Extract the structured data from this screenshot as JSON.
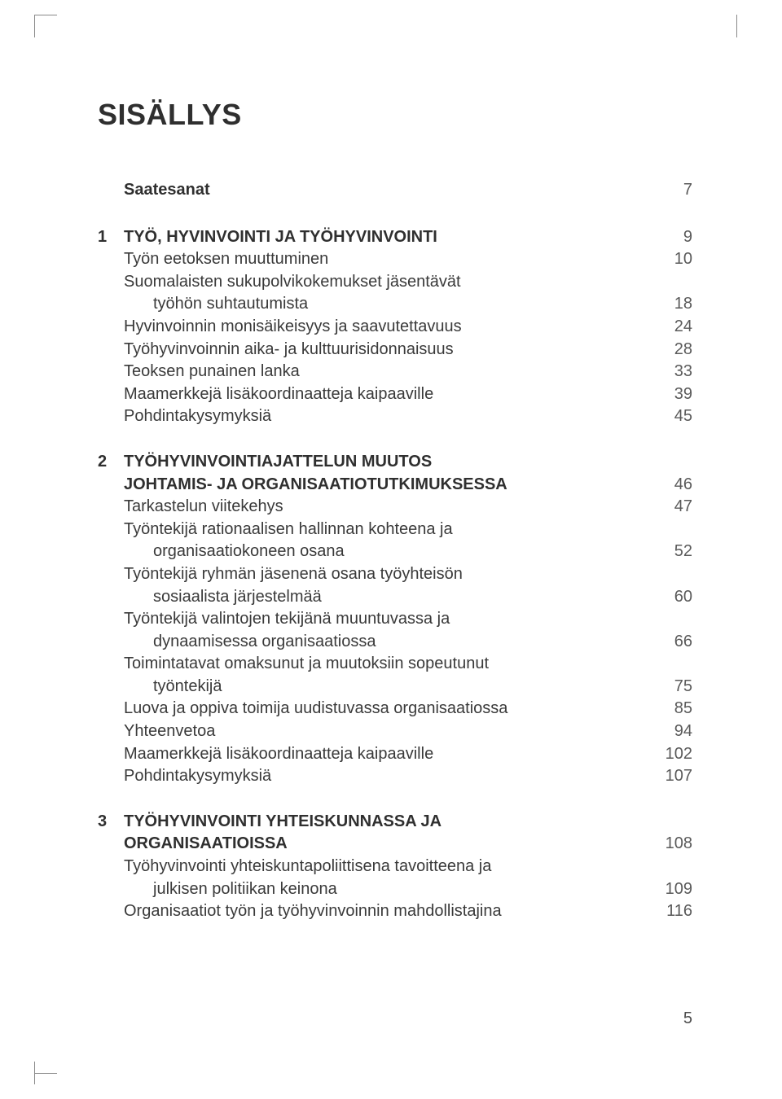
{
  "title": "SISÄLLYS",
  "page_number": "5",
  "colors": {
    "text": "#3a3a3a",
    "heading": "#2f2f2f",
    "pagecol": "#5a5a5a",
    "bg": "#ffffff",
    "crop": "#888888"
  },
  "typography": {
    "title_size_pt": 27,
    "body_size_pt": 15,
    "line_height": 1.38,
    "font_family": "Myriad Pro / Segoe UI / Helvetica"
  },
  "intro": {
    "label": "Saatesanat",
    "page": "7"
  },
  "sections": [
    {
      "num": "1",
      "heading": "TYÖ, HYVINVOINTI JA TYÖHYVINVOINTI",
      "heading_page": "9",
      "items": [
        {
          "label": "Työn eetoksen muuttuminen",
          "page": "10",
          "indent": false
        },
        {
          "label": "Suomalaisten sukupolvikokemukset jäsentävät",
          "page": "",
          "indent": false
        },
        {
          "label": "työhön suhtautumista",
          "page": "18",
          "indent": true
        },
        {
          "label": "Hyvinvoinnin monisäikeisyys ja saavutettavuus",
          "page": "24",
          "indent": false
        },
        {
          "label": "Työhyvinvoinnin aika- ja kulttuurisidonnaisuus",
          "page": "28",
          "indent": false
        },
        {
          "label": "Teoksen punainen lanka",
          "page": "33",
          "indent": false
        },
        {
          "label": "Maamerkkejä lisäkoordinaatteja kaipaaville",
          "page": "39",
          "indent": false
        },
        {
          "label": "Pohdintakysymyksiä",
          "page": "45",
          "indent": false
        }
      ]
    },
    {
      "num": "2",
      "heading": "TYÖHYVINVOINTIAJATTELUN MUUTOS",
      "heading_page": "",
      "heading2": "JOHTAMIS- JA ORGANISAATIOTUTKIMUKSESSA",
      "heading2_page": "46",
      "items": [
        {
          "label": "Tarkastelun viitekehys",
          "page": "47",
          "indent": false
        },
        {
          "label": "Työntekijä rationaalisen hallinnan kohteena ja",
          "page": "",
          "indent": false
        },
        {
          "label": "organisaatiokoneen osana",
          "page": "52",
          "indent": true
        },
        {
          "label": "Työntekijä ryhmän jäsenenä osana työyhteisön",
          "page": "",
          "indent": false
        },
        {
          "label": "sosiaalista järjestelmää",
          "page": "60",
          "indent": true
        },
        {
          "label": "Työntekijä valintojen tekijänä muuntuvassa ja",
          "page": "",
          "indent": false
        },
        {
          "label": "dynaamisessa organisaatiossa",
          "page": "66",
          "indent": true
        },
        {
          "label": "Toimintatavat omaksunut ja muutoksiin sopeutunut",
          "page": "",
          "indent": false
        },
        {
          "label": "työntekijä",
          "page": "75",
          "indent": true
        },
        {
          "label": "Luova ja oppiva toimija uudistuvassa organisaatiossa",
          "page": "85",
          "indent": false
        },
        {
          "label": "Yhteenvetoa",
          "page": "94",
          "indent": false
        },
        {
          "label": "Maamerkkejä lisäkoordinaatteja kaipaaville",
          "page": "102",
          "indent": false
        },
        {
          "label": "Pohdintakysymyksiä",
          "page": "107",
          "indent": false
        }
      ]
    },
    {
      "num": "3",
      "heading": "TYÖHYVINVOINTI YHTEISKUNNASSA JA",
      "heading_page": "",
      "heading2": "ORGANISAATIOISSA",
      "heading2_page": "108",
      "items": [
        {
          "label": "Työhyvinvointi yhteiskuntapoliittisena tavoitteena ja",
          "page": "",
          "indent": false
        },
        {
          "label": "julkisen politiikan keinona",
          "page": "109",
          "indent": true
        },
        {
          "label": "Organisaatiot työn ja työhyvinvoinnin mahdollistajina",
          "page": "116",
          "indent": false
        }
      ]
    }
  ]
}
